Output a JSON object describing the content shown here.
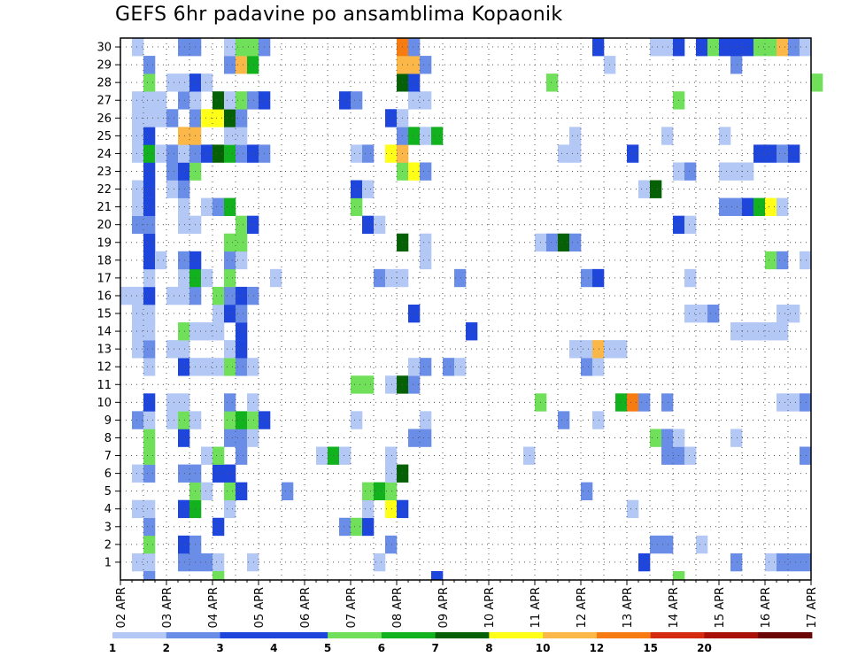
{
  "chart_data": {
    "type": "heatmap",
    "title": "GEFS 6hr padavine po ansamblima Kopaonik",
    "y_ticks": [
      "1",
      "2",
      "3",
      "4",
      "5",
      "6",
      "7",
      "8",
      "9",
      "10",
      "11",
      "12",
      "13",
      "14",
      "15",
      "16",
      "17",
      "18",
      "19",
      "20",
      "21",
      "22",
      "23",
      "24",
      "25",
      "26",
      "27",
      "28",
      "29",
      "30"
    ],
    "x_ticks": [
      "02 APR",
      "03 APR",
      "04 APR",
      "05 APR",
      "06 APR",
      "07 APR",
      "08 APR",
      "09 APR",
      "10 APR",
      "11 APR",
      "12 APR",
      "13 APR",
      "14 APR",
      "15 APR",
      "16 APR",
      "17 APR"
    ],
    "steps_per_day": 4,
    "legend": {
      "thresholds": [
        "1",
        "2",
        "3",
        "4",
        "5",
        "6",
        "7",
        "8",
        "10",
        "12",
        "15",
        "20"
      ],
      "colors": [
        "#b3c8f5",
        "#6a8de8",
        "#1e46dc",
        "#1e46dc",
        "#70e05a",
        "#12b21e",
        "#066006",
        "#ffff18",
        "#fbb848",
        "#f67c12",
        "#d62a10",
        "#a81008",
        "#6b0404"
      ]
    },
    "cells": [
      [
        1,
        1,
        1
      ],
      [
        1,
        2,
        1
      ],
      [
        1,
        5,
        2
      ],
      [
        1,
        6,
        2
      ],
      [
        1,
        7,
        2
      ],
      [
        1,
        8,
        1
      ],
      [
        1,
        11,
        1
      ],
      [
        1,
        22,
        1
      ],
      [
        1,
        45,
        4
      ],
      [
        1,
        53,
        2
      ],
      [
        1,
        56,
        1
      ],
      [
        1,
        57,
        2
      ],
      [
        1,
        58,
        2
      ],
      [
        1,
        59,
        2
      ],
      [
        2,
        2,
        5
      ],
      [
        2,
        5,
        3
      ],
      [
        2,
        6,
        2
      ],
      [
        2,
        23,
        2
      ],
      [
        2,
        46,
        2
      ],
      [
        2,
        47,
        2
      ],
      [
        2,
        50,
        1
      ],
      [
        3,
        2,
        2
      ],
      [
        3,
        8,
        3
      ],
      [
        3,
        19,
        2
      ],
      [
        3,
        20,
        5
      ],
      [
        3,
        21,
        3
      ],
      [
        4,
        1,
        1
      ],
      [
        4,
        2,
        1
      ],
      [
        4,
        5,
        3
      ],
      [
        4,
        6,
        6
      ],
      [
        4,
        9,
        1
      ],
      [
        4,
        21,
        1
      ],
      [
        4,
        23,
        8
      ],
      [
        4,
        24,
        3
      ],
      [
        4,
        44,
        1
      ],
      [
        5,
        6,
        5
      ],
      [
        5,
        7,
        1
      ],
      [
        5,
        9,
        5
      ],
      [
        5,
        10,
        3
      ],
      [
        5,
        14,
        2
      ],
      [
        5,
        21,
        5
      ],
      [
        5,
        22,
        6
      ],
      [
        5,
        23,
        5
      ],
      [
        5,
        40,
        2
      ],
      [
        6,
        1,
        1
      ],
      [
        6,
        2,
        2
      ],
      [
        6,
        5,
        2
      ],
      [
        6,
        6,
        2
      ],
      [
        6,
        8,
        3
      ],
      [
        6,
        9,
        3
      ],
      [
        6,
        23,
        1
      ],
      [
        6,
        24,
        7
      ],
      [
        7,
        2,
        5
      ],
      [
        7,
        7,
        1
      ],
      [
        7,
        8,
        5
      ],
      [
        7,
        10,
        2
      ],
      [
        7,
        17,
        1
      ],
      [
        7,
        18,
        6
      ],
      [
        7,
        19,
        1
      ],
      [
        7,
        23,
        1
      ],
      [
        7,
        35,
        1
      ],
      [
        7,
        47,
        2
      ],
      [
        7,
        48,
        2
      ],
      [
        7,
        49,
        1
      ],
      [
        7,
        59,
        2
      ],
      [
        8,
        2,
        5
      ],
      [
        8,
        5,
        3
      ],
      [
        8,
        9,
        2
      ],
      [
        8,
        10,
        2
      ],
      [
        8,
        11,
        1
      ],
      [
        8,
        25,
        2
      ],
      [
        8,
        26,
        2
      ],
      [
        8,
        46,
        5
      ],
      [
        8,
        47,
        2
      ],
      [
        8,
        48,
        1
      ],
      [
        8,
        53,
        1
      ],
      [
        9,
        1,
        2
      ],
      [
        9,
        2,
        1
      ],
      [
        9,
        4,
        1
      ],
      [
        9,
        5,
        5
      ],
      [
        9,
        6,
        1
      ],
      [
        9,
        9,
        5
      ],
      [
        9,
        10,
        6
      ],
      [
        9,
        11,
        5
      ],
      [
        9,
        12,
        3
      ],
      [
        9,
        20,
        1
      ],
      [
        9,
        26,
        1
      ],
      [
        9,
        38,
        2
      ],
      [
        9,
        41,
        1
      ],
      [
        10,
        2,
        3
      ],
      [
        10,
        4,
        1
      ],
      [
        10,
        5,
        1
      ],
      [
        10,
        9,
        2
      ],
      [
        10,
        11,
        1
      ],
      [
        10,
        36,
        5
      ],
      [
        10,
        43,
        6
      ],
      [
        10,
        44,
        11
      ],
      [
        10,
        45,
        2
      ],
      [
        10,
        47,
        2
      ],
      [
        10,
        57,
        1
      ],
      [
        10,
        58,
        1
      ],
      [
        10,
        59,
        2
      ],
      [
        11,
        20,
        5
      ],
      [
        11,
        21,
        5
      ],
      [
        11,
        23,
        1
      ],
      [
        11,
        24,
        7
      ],
      [
        11,
        25,
        2
      ],
      [
        12,
        2,
        1
      ],
      [
        12,
        5,
        3
      ],
      [
        12,
        6,
        1
      ],
      [
        12,
        7,
        1
      ],
      [
        12,
        8,
        1
      ],
      [
        12,
        9,
        5
      ],
      [
        12,
        10,
        2
      ],
      [
        12,
        11,
        1
      ],
      [
        12,
        25,
        1
      ],
      [
        12,
        26,
        2
      ],
      [
        12,
        28,
        2
      ],
      [
        12,
        29,
        1
      ],
      [
        12,
        40,
        2
      ],
      [
        12,
        41,
        1
      ],
      [
        13,
        1,
        1
      ],
      [
        13,
        2,
        2
      ],
      [
        13,
        4,
        1
      ],
      [
        13,
        5,
        1
      ],
      [
        13,
        9,
        1
      ],
      [
        13,
        10,
        3
      ],
      [
        13,
        39,
        1
      ],
      [
        13,
        40,
        1
      ],
      [
        13,
        41,
        10
      ],
      [
        13,
        42,
        1
      ],
      [
        13,
        43,
        1
      ],
      [
        14,
        1,
        1
      ],
      [
        14,
        2,
        1
      ],
      [
        14,
        5,
        5
      ],
      [
        14,
        6,
        1
      ],
      [
        14,
        7,
        1
      ],
      [
        14,
        8,
        1
      ],
      [
        14,
        10,
        3
      ],
      [
        14,
        30,
        3
      ],
      [
        14,
        53,
        1
      ],
      [
        14,
        54,
        1
      ],
      [
        14,
        55,
        1
      ],
      [
        14,
        56,
        1
      ],
      [
        14,
        57,
        1
      ],
      [
        15,
        1,
        1
      ],
      [
        15,
        2,
        1
      ],
      [
        15,
        8,
        1
      ],
      [
        15,
        9,
        3
      ],
      [
        15,
        10,
        2
      ],
      [
        15,
        25,
        3
      ],
      [
        15,
        49,
        1
      ],
      [
        15,
        50,
        1
      ],
      [
        15,
        51,
        2
      ],
      [
        15,
        57,
        1
      ],
      [
        15,
        58,
        1
      ],
      [
        16,
        0,
        1
      ],
      [
        16,
        1,
        1
      ],
      [
        16,
        2,
        3
      ],
      [
        16,
        4,
        1
      ],
      [
        16,
        5,
        1
      ],
      [
        16,
        6,
        2
      ],
      [
        16,
        8,
        5
      ],
      [
        16,
        9,
        2
      ],
      [
        16,
        10,
        3
      ],
      [
        16,
        11,
        2
      ],
      [
        17,
        2,
        1
      ],
      [
        17,
        5,
        1
      ],
      [
        17,
        6,
        6
      ],
      [
        17,
        7,
        1
      ],
      [
        17,
        9,
        5
      ],
      [
        17,
        13,
        1
      ],
      [
        17,
        22,
        2
      ],
      [
        17,
        23,
        1
      ],
      [
        17,
        24,
        1
      ],
      [
        17,
        29,
        2
      ],
      [
        17,
        40,
        2
      ],
      [
        17,
        41,
        3
      ],
      [
        17,
        49,
        1
      ],
      [
        18,
        2,
        3
      ],
      [
        18,
        3,
        1
      ],
      [
        18,
        5,
        2
      ],
      [
        18,
        6,
        3
      ],
      [
        18,
        9,
        2
      ],
      [
        18,
        10,
        1
      ],
      [
        18,
        26,
        1
      ],
      [
        18,
        56,
        5
      ],
      [
        18,
        57,
        2
      ],
      [
        18,
        59,
        1
      ],
      [
        19,
        2,
        3
      ],
      [
        19,
        9,
        5
      ],
      [
        19,
        10,
        5
      ],
      [
        19,
        24,
        7
      ],
      [
        19,
        26,
        1
      ],
      [
        19,
        36,
        1
      ],
      [
        19,
        37,
        2
      ],
      [
        19,
        38,
        7
      ],
      [
        19,
        39,
        2
      ],
      [
        20,
        1,
        2
      ],
      [
        20,
        2,
        2
      ],
      [
        20,
        5,
        1
      ],
      [
        20,
        6,
        1
      ],
      [
        20,
        10,
        5
      ],
      [
        20,
        11,
        3
      ],
      [
        20,
        21,
        3
      ],
      [
        20,
        22,
        1
      ],
      [
        20,
        48,
        3
      ],
      [
        20,
        49,
        1
      ],
      [
        21,
        1,
        1
      ],
      [
        21,
        2,
        3
      ],
      [
        21,
        5,
        1
      ],
      [
        21,
        7,
        1
      ],
      [
        21,
        8,
        2
      ],
      [
        21,
        9,
        6
      ],
      [
        21,
        20,
        5
      ],
      [
        21,
        52,
        2
      ],
      [
        21,
        53,
        2
      ],
      [
        21,
        54,
        3
      ],
      [
        21,
        55,
        6
      ],
      [
        21,
        56,
        8
      ],
      [
        21,
        57,
        1
      ],
      [
        22,
        1,
        1
      ],
      [
        22,
        2,
        3
      ],
      [
        22,
        4,
        1
      ],
      [
        22,
        5,
        2
      ],
      [
        22,
        20,
        3
      ],
      [
        22,
        21,
        1
      ],
      [
        22,
        45,
        1
      ],
      [
        22,
        46,
        7
      ],
      [
        23,
        2,
        3
      ],
      [
        23,
        4,
        2
      ],
      [
        23,
        5,
        3
      ],
      [
        23,
        6,
        5
      ],
      [
        23,
        24,
        5
      ],
      [
        23,
        25,
        8
      ],
      [
        23,
        26,
        2
      ],
      [
        23,
        48,
        1
      ],
      [
        23,
        49,
        2
      ],
      [
        23,
        52,
        1
      ],
      [
        23,
        53,
        1
      ],
      [
        23,
        54,
        1
      ],
      [
        24,
        1,
        1
      ],
      [
        24,
        2,
        6
      ],
      [
        24,
        3,
        1
      ],
      [
        24,
        4,
        2
      ],
      [
        24,
        5,
        1
      ],
      [
        24,
        6,
        2
      ],
      [
        24,
        7,
        3
      ],
      [
        24,
        8,
        7
      ],
      [
        24,
        9,
        6
      ],
      [
        24,
        10,
        2
      ],
      [
        24,
        11,
        3
      ],
      [
        24,
        12,
        2
      ],
      [
        24,
        20,
        1
      ],
      [
        24,
        21,
        2
      ],
      [
        24,
        23,
        8
      ],
      [
        24,
        24,
        9
      ],
      [
        24,
        38,
        1
      ],
      [
        24,
        39,
        1
      ],
      [
        24,
        44,
        3
      ],
      [
        24,
        55,
        3
      ],
      [
        24,
        56,
        3
      ],
      [
        24,
        57,
        2
      ],
      [
        24,
        58,
        3
      ],
      [
        25,
        1,
        1
      ],
      [
        25,
        2,
        3
      ],
      [
        25,
        5,
        10
      ],
      [
        25,
        6,
        10
      ],
      [
        25,
        9,
        1
      ],
      [
        25,
        10,
        1
      ],
      [
        25,
        24,
        2
      ],
      [
        25,
        25,
        6
      ],
      [
        25,
        26,
        1
      ],
      [
        25,
        27,
        6
      ],
      [
        25,
        39,
        1
      ],
      [
        25,
        47,
        1
      ],
      [
        25,
        52,
        1
      ],
      [
        26,
        1,
        1
      ],
      [
        26,
        2,
        1
      ],
      [
        26,
        3,
        1
      ],
      [
        26,
        4,
        2
      ],
      [
        26,
        6,
        2
      ],
      [
        26,
        7,
        8
      ],
      [
        26,
        8,
        8
      ],
      [
        26,
        9,
        7
      ],
      [
        26,
        10,
        2
      ],
      [
        26,
        23,
        3
      ],
      [
        26,
        24,
        1
      ],
      [
        27,
        1,
        1
      ],
      [
        27,
        2,
        1
      ],
      [
        27,
        3,
        1
      ],
      [
        27,
        5,
        2
      ],
      [
        27,
        6,
        1
      ],
      [
        27,
        8,
        7
      ],
      [
        27,
        9,
        1
      ],
      [
        27,
        10,
        5
      ],
      [
        27,
        11,
        2
      ],
      [
        27,
        12,
        3
      ],
      [
        27,
        19,
        3
      ],
      [
        27,
        20,
        2
      ],
      [
        27,
        25,
        1
      ],
      [
        27,
        26,
        1
      ],
      [
        27,
        48,
        5
      ],
      [
        28,
        2,
        5
      ],
      [
        28,
        4,
        1
      ],
      [
        28,
        5,
        1
      ],
      [
        28,
        6,
        3
      ],
      [
        28,
        7,
        1
      ],
      [
        28,
        24,
        7
      ],
      [
        28,
        25,
        3
      ],
      [
        28,
        37,
        5
      ],
      [
        28,
        60,
        5
      ],
      [
        29,
        2,
        2
      ],
      [
        29,
        9,
        2
      ],
      [
        29,
        10,
        10
      ],
      [
        29,
        11,
        6
      ],
      [
        29,
        24,
        10
      ],
      [
        29,
        25,
        10
      ],
      [
        29,
        26,
        2
      ],
      [
        29,
        42,
        1
      ],
      [
        29,
        53,
        2
      ],
      [
        30,
        1,
        1
      ],
      [
        30,
        5,
        2
      ],
      [
        30,
        6,
        2
      ],
      [
        30,
        9,
        1
      ],
      [
        30,
        10,
        5
      ],
      [
        30,
        11,
        5
      ],
      [
        30,
        12,
        2
      ],
      [
        30,
        24,
        11
      ],
      [
        30,
        25,
        2
      ],
      [
        30,
        41,
        3
      ],
      [
        30,
        46,
        1
      ],
      [
        30,
        47,
        1
      ],
      [
        30,
        48,
        3
      ],
      [
        30,
        50,
        3
      ],
      [
        30,
        51,
        5
      ],
      [
        30,
        52,
        3
      ],
      [
        30,
        53,
        3
      ],
      [
        30,
        54,
        3
      ],
      [
        30,
        55,
        5
      ],
      [
        30,
        56,
        5
      ],
      [
        30,
        57,
        10
      ],
      [
        30,
        58,
        2
      ],
      [
        30,
        59,
        1
      ],
      [
        0,
        2,
        2
      ],
      [
        0,
        8,
        5
      ],
      [
        0,
        27,
        3
      ],
      [
        0,
        48,
        5
      ]
    ]
  }
}
